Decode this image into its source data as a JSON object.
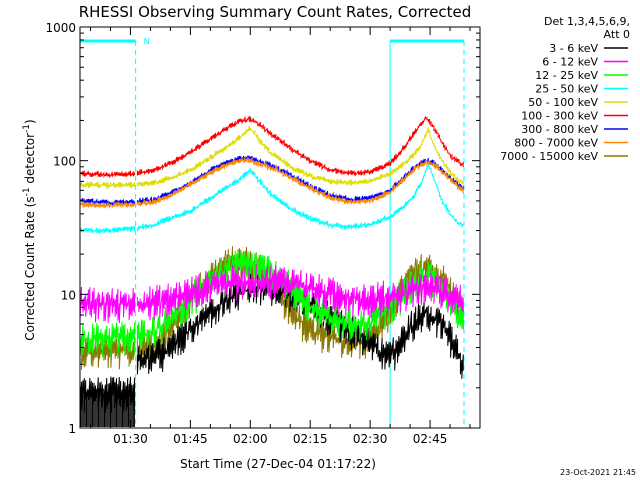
{
  "chart_data": {
    "type": "line",
    "title": "RHESSI Observing Summary Count Rates, Corrected",
    "xlabel": "Start Time (27-Dec-04 01:17:22)",
    "ylabel_main": "Corrected Count Rate (s",
    "ylabel_sup1": "-1",
    "ylabel_mid": " detector",
    "ylabel_sup2": "-1",
    "ylabel_end": ")",
    "y_scale": "log",
    "ylim": [
      1,
      1000
    ],
    "xlim_minutes": [
      17.37,
      117.5
    ],
    "x_ticks": [
      {
        "m": 30,
        "label": "01:30"
      },
      {
        "m": 45,
        "label": "01:45"
      },
      {
        "m": 60,
        "label": "02:00"
      },
      {
        "m": 75,
        "label": "02:15"
      },
      {
        "m": 90,
        "label": "02:30"
      },
      {
        "m": 105,
        "label": "02:45"
      }
    ],
    "y_ticks": [
      {
        "v": 1,
        "label": "1"
      },
      {
        "v": 10,
        "label": "10"
      },
      {
        "v": 100,
        "label": "100"
      },
      {
        "v": 1000,
        "label": "1000"
      }
    ],
    "legend": {
      "placement": "top-right",
      "title1": "Det 1,3,4,5,6,9,",
      "title2": "Att 0"
    },
    "annotations": {
      "night_marker": "N",
      "timestamp": "23-Oct-2021 21:45",
      "intervals": [
        {
          "start": 17.37,
          "end": 31.3,
          "type": "night"
        },
        {
          "start": 95.0,
          "end": 113.5,
          "type": "day"
        }
      ]
    },
    "series": [
      {
        "name": "3 - 6 keV",
        "color": "#000000",
        "x": [
          17.4,
          31.2,
          31.3,
          36,
          40,
          45,
          50,
          55,
          60,
          65,
          70,
          75,
          80,
          85,
          90,
          93,
          96,
          100,
          104,
          108,
          112,
          113.5
        ],
        "y": [
          1.8,
          1.8,
          3.2,
          3.4,
          3.8,
          5.5,
          7.5,
          9.5,
          11,
          11,
          10,
          8.5,
          6.5,
          5.3,
          4.5,
          3.6,
          3.6,
          5.5,
          7.5,
          6,
          3.6,
          2.6
        ]
      },
      {
        "name": "6 - 12 keV",
        "color": "#ff00ff",
        "x": [
          17.4,
          25,
          31,
          36,
          40,
          45,
          50,
          55,
          60,
          65,
          70,
          75,
          80,
          85,
          90,
          95,
          100,
          104,
          108,
          112,
          113.5
        ],
        "y": [
          8.5,
          8.3,
          8.6,
          8.7,
          9.2,
          10.2,
          11.5,
          12.3,
          12.5,
          12.6,
          12.3,
          11,
          10,
          9.5,
          9.2,
          9.5,
          10.5,
          12,
          10.5,
          9.2,
          8.5
        ]
      },
      {
        "name": "12 - 25 keV",
        "color": "#00ff00",
        "x": [
          17.4,
          25,
          31,
          36,
          40,
          45,
          50,
          55,
          60,
          63,
          67,
          71,
          75,
          80,
          85,
          90,
          95,
          100,
          104,
          108,
          112,
          113.5
        ],
        "y": [
          4.5,
          4.7,
          4.7,
          5.3,
          6.5,
          9,
          12.5,
          15.5,
          16.5,
          15.5,
          13,
          10.5,
          8,
          6.5,
          6,
          6,
          8,
          11.5,
          14,
          11.5,
          7.5,
          6
        ]
      },
      {
        "name": "25 - 50 keV",
        "color": "#00ffff",
        "x": [
          17.4,
          25,
          31,
          36,
          40,
          45,
          50,
          55,
          58,
          60,
          62,
          65,
          70,
          75,
          80,
          85,
          90,
          95,
          98,
          101,
          103,
          104.5,
          106,
          108,
          110,
          112,
          113.5
        ],
        "y": [
          30,
          30,
          31,
          33,
          37,
          42,
          52,
          65,
          75,
          85,
          72,
          56,
          44,
          37,
          33,
          32,
          33,
          38,
          44,
          55,
          70,
          95,
          72,
          50,
          40,
          34,
          33
        ]
      },
      {
        "name": "50 - 100 keV",
        "color": "#dddd00",
        "x": [
          17.4,
          25,
          31,
          36,
          40,
          45,
          50,
          55,
          58,
          60,
          62,
          65,
          70,
          75,
          80,
          85,
          90,
          95,
          98,
          101,
          103,
          104.5,
          106,
          108,
          110,
          112,
          113.5
        ],
        "y": [
          66,
          65,
          66,
          68,
          74,
          85,
          105,
          130,
          155,
          175,
          145,
          115,
          90,
          76,
          70,
          68,
          70,
          80,
          92,
          110,
          135,
          170,
          130,
          100,
          82,
          72,
          68
        ]
      },
      {
        "name": "100 - 300 keV",
        "color": "#ff0000",
        "x": [
          17.4,
          25,
          31,
          36,
          40,
          45,
          50,
          55,
          58,
          60,
          62,
          65,
          70,
          75,
          80,
          85,
          90,
          95,
          98,
          101,
          104,
          106,
          108,
          110,
          112,
          113.5
        ],
        "y": [
          80,
          78,
          80,
          85,
          95,
          115,
          145,
          180,
          200,
          205,
          190,
          160,
          125,
          100,
          85,
          80,
          82,
          95,
          120,
          160,
          210,
          175,
          135,
          110,
          98,
          92
        ]
      },
      {
        "name": "300 - 800 keV",
        "color": "#0000ff",
        "x": [
          17.4,
          25,
          31,
          36,
          40,
          45,
          50,
          55,
          58,
          60,
          62,
          65,
          70,
          75,
          80,
          85,
          90,
          95,
          98,
          101,
          104,
          106,
          108,
          110,
          112,
          113.5
        ],
        "y": [
          50,
          48,
          49,
          51,
          57,
          68,
          84,
          98,
          104,
          103,
          99,
          92,
          78,
          64,
          55,
          51,
          52,
          60,
          72,
          88,
          100,
          95,
          85,
          75,
          66,
          60
        ]
      },
      {
        "name": "800 - 7000 keV",
        "color": "#ff8800",
        "x": [
          17.4,
          25,
          31,
          36,
          40,
          45,
          50,
          55,
          58,
          60,
          62,
          65,
          70,
          75,
          80,
          85,
          90,
          95,
          98,
          101,
          104,
          106,
          108,
          110,
          112,
          113.5
        ],
        "y": [
          47,
          46,
          47,
          49,
          55,
          66,
          81,
          95,
          101,
          100,
          96,
          89,
          75,
          62,
          53,
          49,
          50,
          58,
          70,
          86,
          98,
          93,
          83,
          73,
          64,
          58
        ]
      },
      {
        "name": "7000 - 15000 keV",
        "color": "#887700",
        "x": [
          17.4,
          25,
          31,
          36,
          40,
          45,
          50,
          55,
          58,
          61,
          64,
          67,
          71,
          75,
          80,
          85,
          90,
          95,
          100,
          104,
          108,
          112,
          113.5
        ],
        "y": [
          3.8,
          3.7,
          3.8,
          4.2,
          5.5,
          9,
          13.5,
          17,
          17.5,
          16.5,
          14,
          10.5,
          7,
          5.3,
          4.8,
          4.3,
          4.6,
          7.5,
          13,
          16,
          13,
          8.5,
          7
        ]
      }
    ]
  }
}
